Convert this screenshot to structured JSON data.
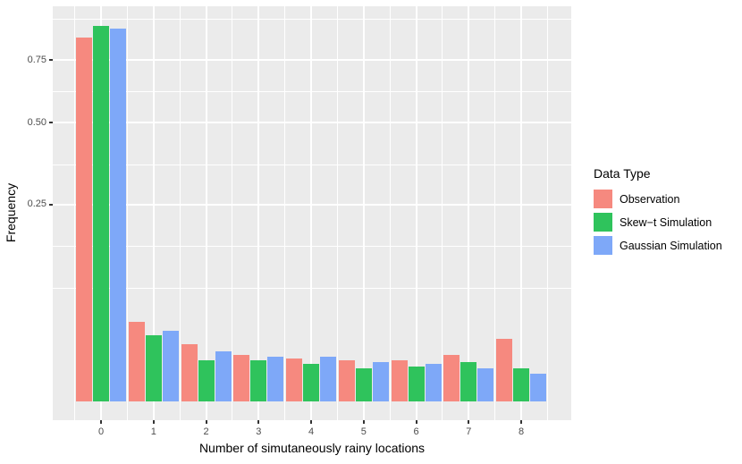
{
  "y_axis": {
    "title": "Frequency",
    "tick_labels": [
      "0.75",
      "0.50",
      "0.25"
    ],
    "tick_values": [
      0.75,
      0.5,
      0.25
    ]
  },
  "x_axis": {
    "title": "Number of simutaneously rainy locations",
    "tick_labels": [
      "0",
      "1",
      "2",
      "3",
      "4",
      "5",
      "6",
      "7",
      "8"
    ]
  },
  "legend": {
    "title": "Data Type",
    "items": [
      "Observation",
      "Skew−t Simulation",
      "Gaussian Simulation"
    ]
  },
  "colors": {
    "observation": "#F6897F",
    "skew_t": "#2FC35C",
    "gaussian": "#7EA8F8",
    "panel_background": "#EBEBEB",
    "gridline": "#ffffff",
    "tick_mark": "#333333",
    "tick_label": "#4D4D4D"
  },
  "chart_data": {
    "type": "bar",
    "title": "",
    "xlabel": "Number of simutaneously rainy locations",
    "ylabel": "Frequency",
    "y_scale": "sqrt",
    "ylim": [
      0,
      1
    ],
    "y_ticks": [
      0.25,
      0.5,
      0.75
    ],
    "grid": "white major and minor gridlines on gray panel",
    "legend_position": "right",
    "categories": [
      "0",
      "1",
      "2",
      "3",
      "4",
      "5",
      "6",
      "7",
      "8"
    ],
    "series": [
      {
        "name": "Observation",
        "color": "#F6897F",
        "values": [
          0.85,
          0.041,
          0.021,
          0.014,
          0.012,
          0.011,
          0.011,
          0.014,
          0.025
        ]
      },
      {
        "name": "Skew−t Simulation",
        "color": "#2FC35C",
        "values": [
          0.905,
          0.028,
          0.011,
          0.011,
          0.009,
          0.007,
          0.008,
          0.01,
          0.007
        ]
      },
      {
        "name": "Gaussian Simulation",
        "color": "#7EA8F8",
        "values": [
          0.895,
          0.032,
          0.016,
          0.013,
          0.013,
          0.01,
          0.009,
          0.007,
          0.005
        ]
      }
    ]
  }
}
